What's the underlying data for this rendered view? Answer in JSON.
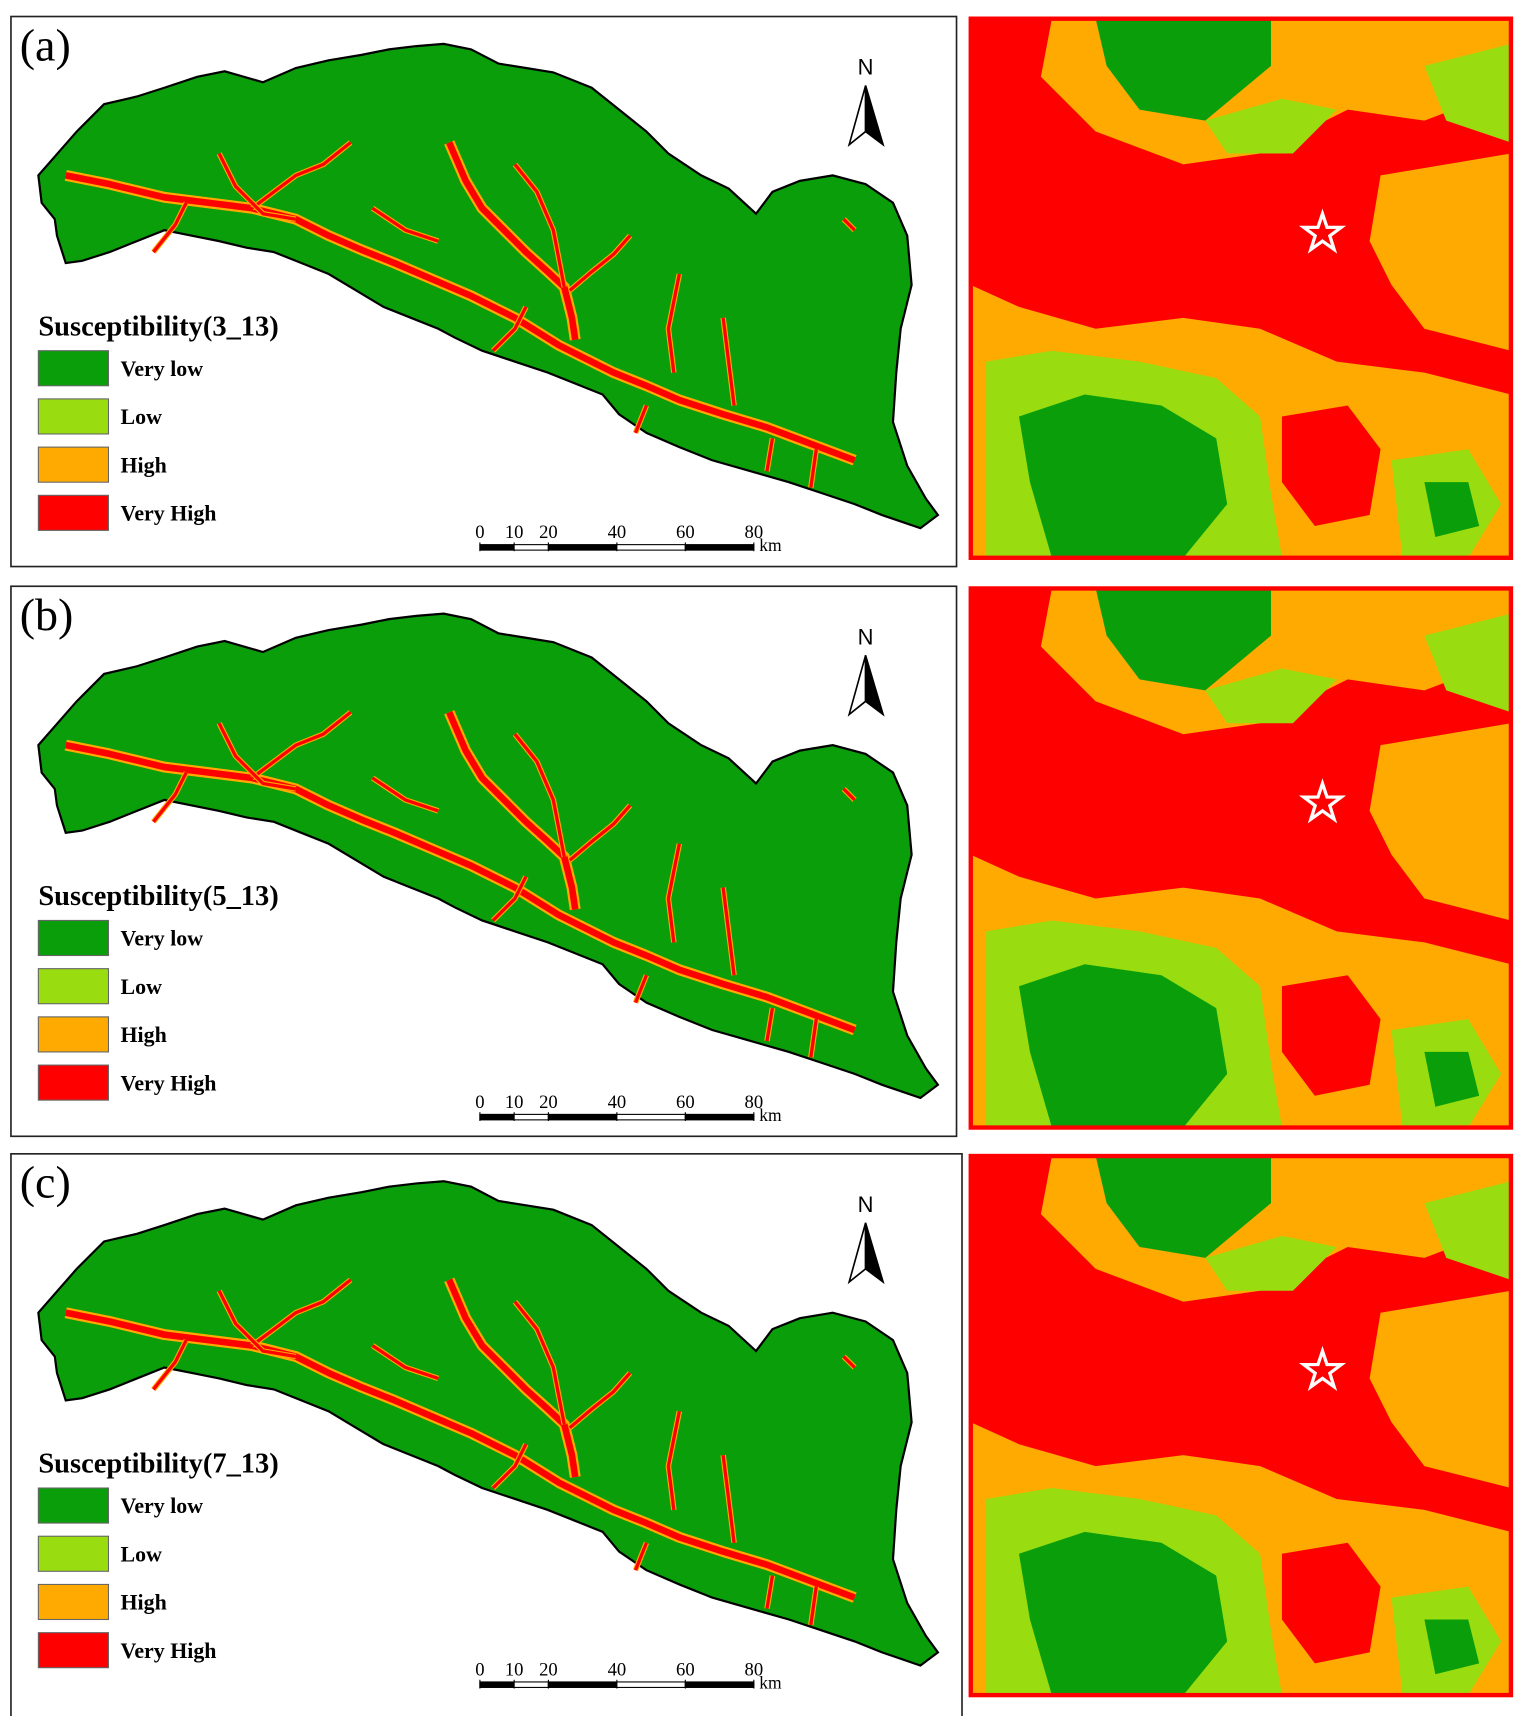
{
  "panels": [
    {
      "label": "(a)",
      "north": "N",
      "legend": {
        "title": "Susceptibility(3_13)",
        "items": [
          {
            "label": "Very low",
            "color": "#0a9e0a"
          },
          {
            "label": "Low",
            "color": "#99dd11"
          },
          {
            "label": "High",
            "color": "#ffaa00"
          },
          {
            "label": "Very High",
            "color": "#ff0000"
          }
        ]
      },
      "scale": {
        "ticks": [
          0,
          10,
          20,
          40,
          60,
          80
        ],
        "unit": "km"
      }
    },
    {
      "label": "(b)",
      "north": "N",
      "legend": {
        "title": "Susceptibility(5_13)",
        "items": [
          {
            "label": "Very low",
            "color": "#0a9e0a"
          },
          {
            "label": "Low",
            "color": "#99dd11"
          },
          {
            "label": "High",
            "color": "#ffaa00"
          },
          {
            "label": "Very High",
            "color": "#ff0000"
          }
        ]
      },
      "scale": {
        "ticks": [
          0,
          10,
          20,
          40,
          60,
          80
        ],
        "unit": "km"
      }
    },
    {
      "label": "(c)",
      "north": "N",
      "legend": {
        "title": "Susceptibility(7_13)",
        "items": [
          {
            "label": "Very low",
            "color": "#0a9e0a"
          },
          {
            "label": "Low",
            "color": "#99dd11"
          },
          {
            "label": "High",
            "color": "#ffaa00"
          },
          {
            "label": "Very High",
            "color": "#ff0000"
          }
        ]
      },
      "scale": {
        "ticks": [
          0,
          10,
          20,
          40,
          60,
          80
        ],
        "unit": "km"
      }
    }
  ]
}
